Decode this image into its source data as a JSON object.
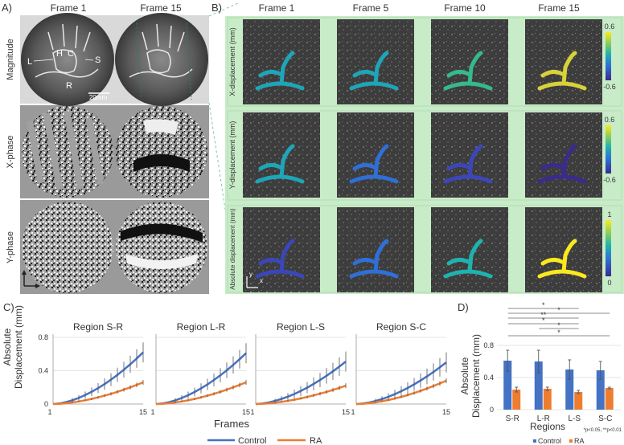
{
  "panel_labels": {
    "a": "A)",
    "b": "B)",
    "c": "C)",
    "d": "D)"
  },
  "panel_a": {
    "frame_headers": [
      "Frame 1",
      "Frame 15"
    ],
    "row_labels": [
      "Magnitude",
      "X-phase",
      "Y-phase"
    ],
    "anatomy_labels": {
      "h": "H",
      "c": "C",
      "l": "L",
      "s": "S",
      "r": "R"
    },
    "scale_bar": "20mm"
  },
  "panel_b": {
    "frame_headers": [
      "Frame 1",
      "Frame 5",
      "Frame 10",
      "Frame 15"
    ],
    "rows": [
      {
        "label": "X-displacement (mm)",
        "cbar_max": "0.6",
        "cbar_min": "-0.6"
      },
      {
        "label": "Y-displacement (mm)",
        "cbar_max": "0.6",
        "cbar_min": "-0.6"
      },
      {
        "label": "Absolute displacement (mm)",
        "cbar_max": "1",
        "cbar_min": "0"
      }
    ],
    "axes_labels": {
      "x": "x",
      "y": "y"
    }
  },
  "legend": {
    "control": "Control",
    "ra": "RA"
  },
  "colors": {
    "control": "#4472c4",
    "ra": "#ed7d31",
    "panel_bg": "#c8ebc8",
    "errbar": "#555555"
  },
  "chart_data": [
    {
      "type": "line",
      "title": "Region S-R",
      "ylabel": "Absolute Displacement (mm)",
      "xlabel": "Frames",
      "x": [
        1,
        15
      ],
      "x_ticks": [
        "1",
        "15"
      ],
      "y_ticks": [
        "0",
        "0.4",
        "0.8"
      ],
      "ylim": [
        0,
        0.8
      ],
      "series": [
        {
          "name": "Control",
          "values": [
            0.0,
            0.62
          ],
          "error": 0.12
        },
        {
          "name": "RA",
          "values": [
            0.0,
            0.26
          ],
          "error": 0.03
        }
      ]
    },
    {
      "type": "line",
      "title": "Region L-R",
      "x": [
        1,
        15
      ],
      "x_ticks": [
        "1",
        "15"
      ],
      "ylim": [
        0,
        0.8
      ],
      "series": [
        {
          "name": "Control",
          "values": [
            0.0,
            0.61
          ],
          "error": 0.12
        },
        {
          "name": "RA",
          "values": [
            0.0,
            0.26
          ],
          "error": 0.03
        }
      ]
    },
    {
      "type": "line",
      "title": "Region L-S",
      "x": [
        1,
        15
      ],
      "x_ticks": [
        "1",
        "15"
      ],
      "ylim": [
        0,
        0.8
      ],
      "series": [
        {
          "name": "Control",
          "values": [
            0.0,
            0.51
          ],
          "error": 0.12
        },
        {
          "name": "RA",
          "values": [
            0.0,
            0.22
          ],
          "error": 0.03
        }
      ]
    },
    {
      "type": "line",
      "title": "Region S-C",
      "x": [
        1,
        15
      ],
      "x_ticks": [
        "1",
        "15"
      ],
      "ylim": [
        0,
        0.8
      ],
      "series": [
        {
          "name": "Control",
          "values": [
            0.0,
            0.5
          ],
          "error": 0.12
        },
        {
          "name": "RA",
          "values": [
            0.0,
            0.28
          ],
          "error": 0.03
        }
      ]
    },
    {
      "type": "bar",
      "title": "",
      "xlabel": "Regions",
      "ylabel": "Absolute Displacement (mm)",
      "categories": [
        "S-R",
        "L-R",
        "L-S",
        "S-C"
      ],
      "y_ticks": [
        "0",
        "0.4",
        "0.8"
      ],
      "ylim": [
        0,
        0.9
      ],
      "series": [
        {
          "name": "Control",
          "values": [
            0.61,
            0.6,
            0.5,
            0.49
          ],
          "error": [
            0.13,
            0.14,
            0.12,
            0.11
          ]
        },
        {
          "name": "RA",
          "values": [
            0.25,
            0.26,
            0.22,
            0.27
          ],
          "error": [
            0.03,
            0.02,
            0.02,
            0.01
          ]
        }
      ],
      "significance": [
        "*",
        "*",
        "**",
        "*",
        "*",
        "*"
      ],
      "footnote": "*p<0.05, **p<0.01",
      "legend": [
        "Control",
        "RA"
      ]
    }
  ]
}
